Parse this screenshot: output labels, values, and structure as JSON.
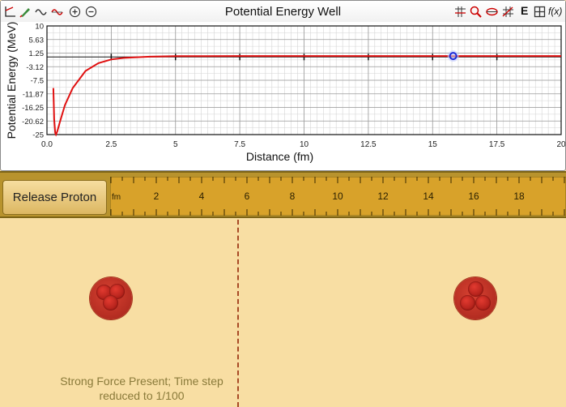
{
  "graph": {
    "title": "Potential Energy Well",
    "right_toolbar_icons": [
      "zoom-axis-icon",
      "zoom-icon",
      "zoom-fit-icon",
      "grid-icon",
      "energy-icon",
      "grid-toggle-icon",
      "function-icon"
    ],
    "left_toolbar_icons": [
      "axes-icon",
      "pen-icon",
      "wave-icon",
      "wave-red-icon",
      "zoom-in-icon",
      "zoom-out-icon"
    ],
    "energy_button_label": "E",
    "function_button_label": "f(x)"
  },
  "chart_data": {
    "type": "line",
    "title": "",
    "xlabel": "Distance (fm)",
    "ylabel": "Potential Energy (MeV)",
    "xlim": [
      0,
      20
    ],
    "ylim": [
      -25,
      10
    ],
    "x_ticks": [
      "0.0",
      "2.5",
      "5",
      "7.5",
      "10",
      "12.5",
      "15",
      "17.5",
      "20"
    ],
    "y_ticks": [
      "10",
      "5.63",
      "1.25",
      "-3.12",
      "-7.5",
      "-11.87",
      "-16.25",
      "-20.62",
      "-25"
    ],
    "grid": true,
    "series": [
      {
        "color": "#e01010",
        "x": [
          0.25,
          0.28,
          0.32,
          0.35,
          0.4,
          0.5,
          0.7,
          1.0,
          1.5,
          2.0,
          2.5,
          3.0,
          4.0,
          5.0,
          7.5,
          10,
          12.5,
          15,
          17.5,
          20
        ],
        "y": [
          -10,
          -20,
          -24.5,
          -25,
          -24,
          -21,
          -15.5,
          -10,
          -4.5,
          -2,
          -0.8,
          -0.3,
          0.1,
          0.25,
          0.3,
          0.3,
          0.3,
          0.3,
          0.3,
          0.3
        ]
      }
    ],
    "marker": {
      "x": 15.8,
      "y": 0.3
    }
  },
  "controls": {
    "release_label": "Release Proton"
  },
  "ruler": {
    "unit": "fm",
    "labels": [
      "2",
      "4",
      "6",
      "8",
      "10",
      "12",
      "14",
      "16",
      "18"
    ]
  },
  "sim": {
    "status": "Strong Force Present; Time step reduced to 1/100"
  },
  "colors": {
    "curve": "#e01010",
    "marker": "#1a28d8",
    "ruler": "#d8a22a",
    "background": "#f8dea3"
  }
}
